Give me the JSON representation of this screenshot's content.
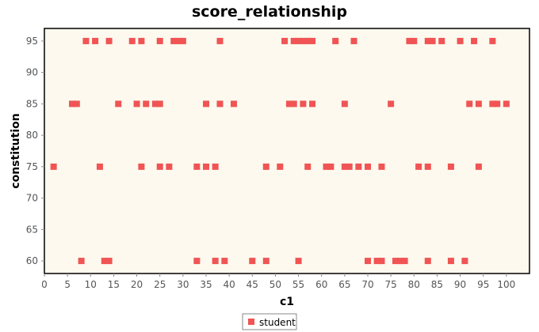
{
  "chart_data": {
    "type": "scatter",
    "title": "score_relationship",
    "xlabel": "c1",
    "ylabel": "constitution",
    "xlim": [
      0,
      105
    ],
    "ylim": [
      58,
      97
    ],
    "x_ticks": [
      0,
      5,
      10,
      15,
      20,
      25,
      30,
      35,
      40,
      45,
      50,
      55,
      60,
      65,
      70,
      75,
      80,
      85,
      90,
      95,
      100
    ],
    "y_ticks": [
      60,
      65,
      70,
      75,
      80,
      85,
      90,
      95
    ],
    "grid": false,
    "legend_position": "bottom-center",
    "background_color": "#fdf9ee",
    "marker_color": "#f05454",
    "series": [
      {
        "name": "student",
        "points": [
          [
            9,
            95
          ],
          [
            11,
            95
          ],
          [
            14,
            95
          ],
          [
            19,
            95
          ],
          [
            21,
            95
          ],
          [
            25,
            95
          ],
          [
            28,
            95
          ],
          [
            29,
            95
          ],
          [
            30,
            95
          ],
          [
            38,
            95
          ],
          [
            52,
            95
          ],
          [
            54,
            95
          ],
          [
            55,
            95
          ],
          [
            56,
            95
          ],
          [
            57,
            95
          ],
          [
            58,
            95
          ],
          [
            63,
            95
          ],
          [
            67,
            95
          ],
          [
            79,
            95
          ],
          [
            80,
            95
          ],
          [
            83,
            95
          ],
          [
            84,
            95
          ],
          [
            86,
            95
          ],
          [
            90,
            95
          ],
          [
            93,
            95
          ],
          [
            97,
            95
          ],
          [
            6,
            85
          ],
          [
            7,
            85
          ],
          [
            16,
            85
          ],
          [
            20,
            85
          ],
          [
            22,
            85
          ],
          [
            24,
            85
          ],
          [
            25,
            85
          ],
          [
            35,
            85
          ],
          [
            38,
            85
          ],
          [
            41,
            85
          ],
          [
            53,
            85
          ],
          [
            54,
            85
          ],
          [
            56,
            85
          ],
          [
            58,
            85
          ],
          [
            65,
            85
          ],
          [
            75,
            85
          ],
          [
            92,
            85
          ],
          [
            94,
            85
          ],
          [
            97,
            85
          ],
          [
            98,
            85
          ],
          [
            100,
            85
          ],
          [
            2,
            75
          ],
          [
            12,
            75
          ],
          [
            21,
            75
          ],
          [
            25,
            75
          ],
          [
            27,
            75
          ],
          [
            33,
            75
          ],
          [
            35,
            75
          ],
          [
            37,
            75
          ],
          [
            48,
            75
          ],
          [
            51,
            75
          ],
          [
            57,
            75
          ],
          [
            61,
            75
          ],
          [
            62,
            75
          ],
          [
            65,
            75
          ],
          [
            66,
            75
          ],
          [
            68,
            75
          ],
          [
            70,
            75
          ],
          [
            73,
            75
          ],
          [
            81,
            75
          ],
          [
            83,
            75
          ],
          [
            88,
            75
          ],
          [
            94,
            75
          ],
          [
            8,
            60
          ],
          [
            13,
            60
          ],
          [
            14,
            60
          ],
          [
            33,
            60
          ],
          [
            37,
            60
          ],
          [
            39,
            60
          ],
          [
            45,
            60
          ],
          [
            48,
            60
          ],
          [
            55,
            60
          ],
          [
            70,
            60
          ],
          [
            72,
            60
          ],
          [
            73,
            60
          ],
          [
            76,
            60
          ],
          [
            77,
            60
          ],
          [
            78,
            60
          ],
          [
            83,
            60
          ],
          [
            88,
            60
          ],
          [
            91,
            60
          ]
        ]
      }
    ]
  }
}
